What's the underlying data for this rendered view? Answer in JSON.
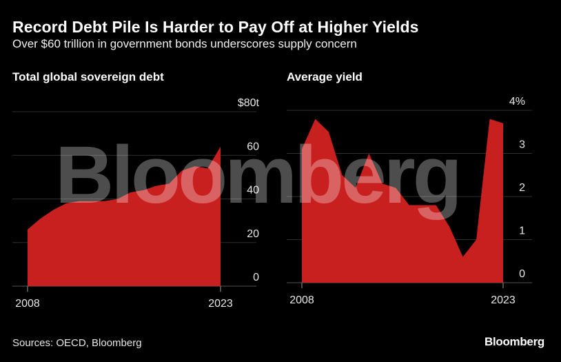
{
  "header": {
    "title": "Record Debt Pile Is Harder to Pay Off at Higher Yields",
    "subtitle": "Over $60 trillion in government bonds underscores supply concern"
  },
  "colors": {
    "background": "#000000",
    "area_fill": "#c8201f",
    "text": "#ffffff",
    "gridline": "#2e2e2e"
  },
  "chart_data": [
    {
      "type": "area",
      "title": "Total global sovereign debt",
      "x": [
        2008,
        2009,
        2010,
        2011,
        2012,
        2013,
        2014,
        2015,
        2016,
        2017,
        2018,
        2019,
        2020,
        2021,
        2022,
        2023
      ],
      "series": [
        {
          "values": [
            26,
            31,
            35,
            38,
            39,
            39,
            39,
            40,
            43,
            44,
            46,
            47,
            53,
            55,
            54,
            64
          ]
        }
      ],
      "y_tick_labels": [
        "$80t",
        "60",
        "40",
        "20",
        "0"
      ],
      "y_ticks": [
        80,
        60,
        40,
        20,
        0
      ],
      "x_tick_labels": [
        "2008",
        "2023"
      ],
      "ylim": [
        0,
        80
      ],
      "axis_side": "right",
      "grid": true
    },
    {
      "type": "area",
      "title": "Average yield",
      "x": [
        2008,
        2009,
        2010,
        2011,
        2012,
        2013,
        2014,
        2015,
        2016,
        2017,
        2018,
        2019,
        2020,
        2021,
        2022,
        2023
      ],
      "series": [
        {
          "values": [
            3.1,
            3.8,
            3.5,
            2.5,
            2.2,
            3.0,
            2.3,
            2.2,
            1.8,
            1.8,
            1.8,
            1.3,
            0.6,
            1.0,
            3.8,
            3.7
          ]
        }
      ],
      "y_tick_labels": [
        "4%",
        "3",
        "2",
        "1",
        "0"
      ],
      "y_ticks": [
        4,
        3,
        2,
        1,
        0
      ],
      "x_tick_labels": [
        "2008",
        "2023"
      ],
      "ylim": [
        0,
        4
      ],
      "axis_side": "right",
      "grid": true
    }
  ],
  "watermark": "Bloomberg",
  "footer": {
    "source": "Sources: OECD, Bloomberg",
    "brand": "Bloomberg"
  }
}
